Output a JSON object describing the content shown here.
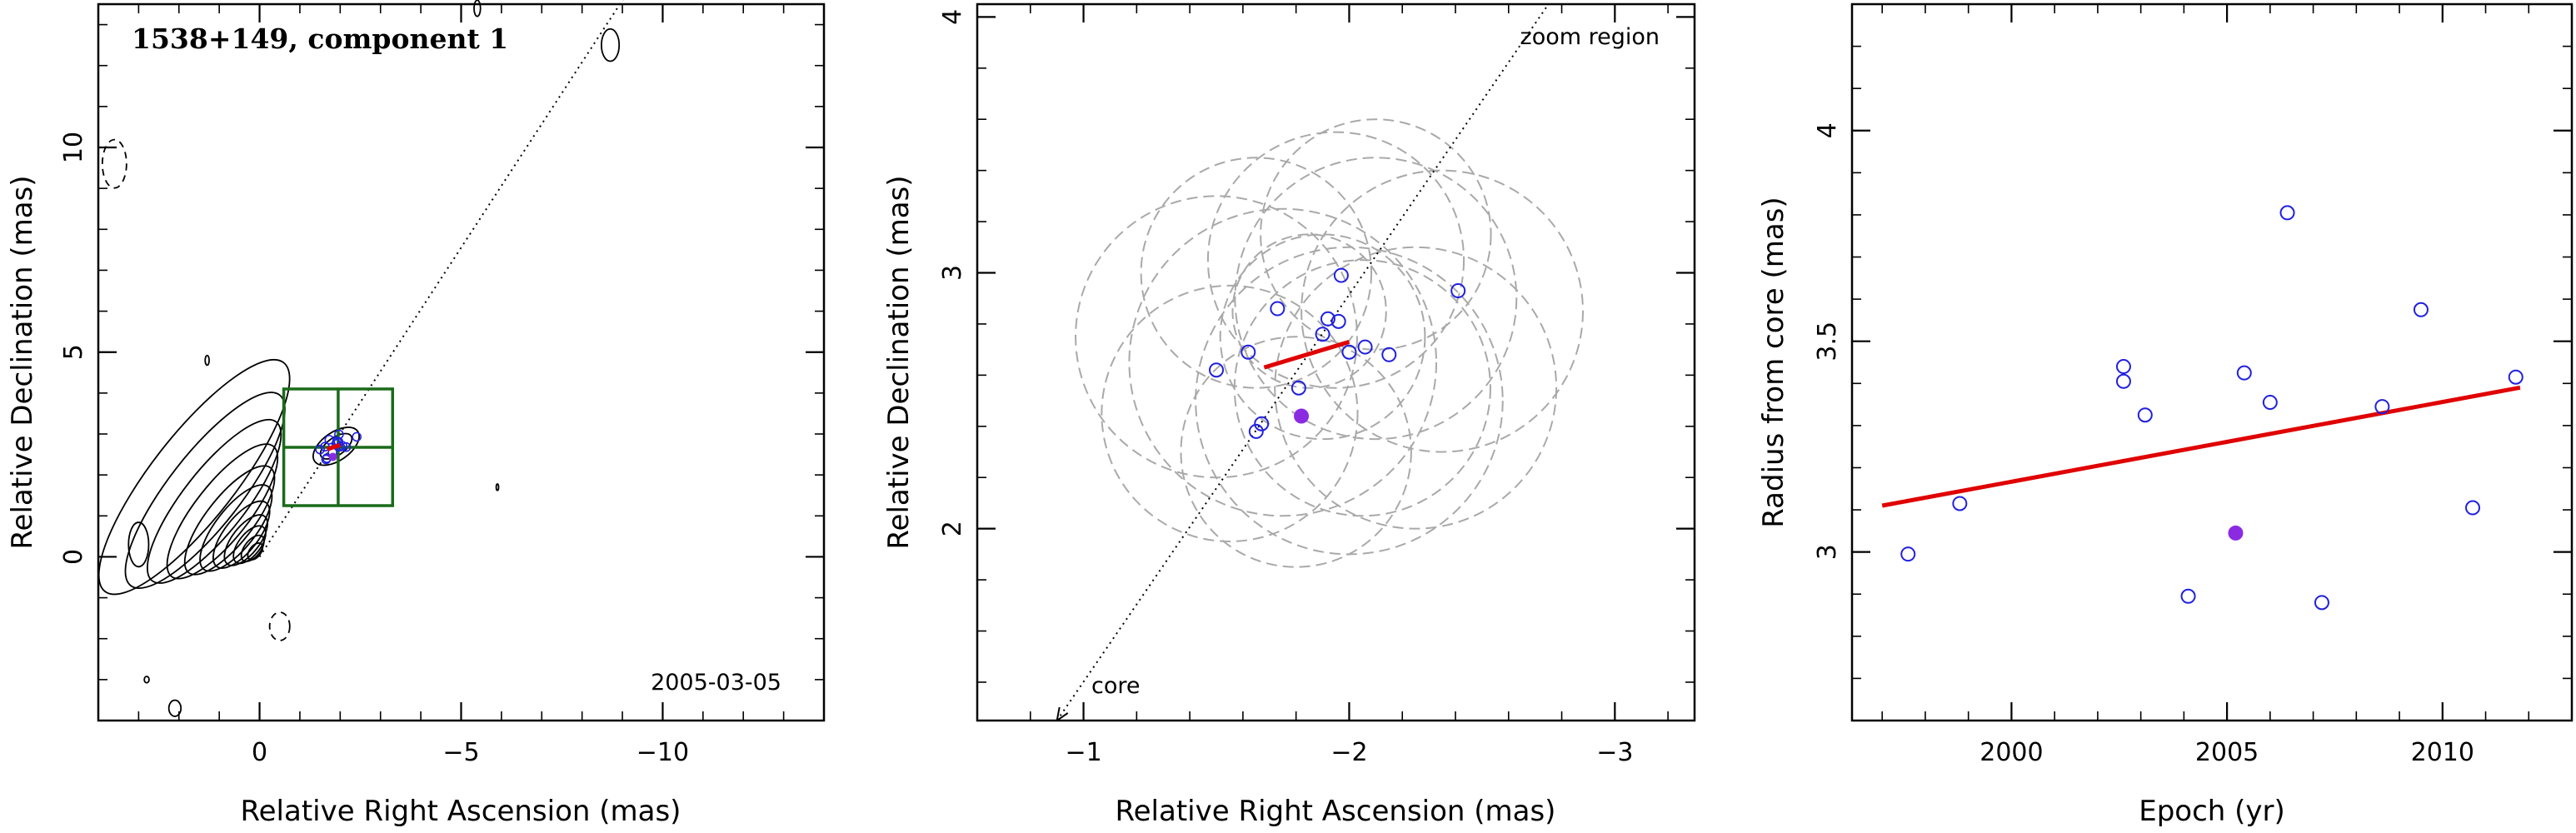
{
  "chart_data": [
    {
      "type": "contour",
      "title": "1538+149, component 1",
      "date_label": "2005-03-05",
      "xlabel": "Relative Right Ascension (mas)",
      "ylabel": "Relative Declination (mas)",
      "xlim": [
        4,
        -14
      ],
      "ylim": [
        -4,
        13.5
      ],
      "xticks": [
        0,
        -5,
        -10
      ],
      "yticks": [
        0,
        5,
        10
      ],
      "tick_labels_x": [
        "0",
        "−5",
        "−10"
      ],
      "tick_labels_y": [
        "0",
        "5",
        "10"
      ],
      "jet_line": {
        "from": [
          0,
          0
        ],
        "to": [
          -9.6,
          14.5
        ]
      },
      "zoom_box": {
        "x": [
          -0.6,
          -3.3
        ],
        "y": [
          1.25,
          4.1
        ]
      },
      "component_points": [
        [
          -1.5,
          2.62
        ],
        [
          -1.62,
          2.69
        ],
        [
          -1.73,
          2.86
        ],
        [
          -1.65,
          2.38
        ],
        [
          -1.67,
          2.41
        ],
        [
          -1.81,
          2.55
        ],
        [
          -1.9,
          2.76
        ],
        [
          -1.92,
          2.82
        ],
        [
          -1.96,
          2.81
        ],
        [
          -1.97,
          2.99
        ],
        [
          -2.0,
          2.69
        ],
        [
          -2.06,
          2.71
        ],
        [
          -2.15,
          2.68
        ],
        [
          -2.41,
          2.93
        ]
      ],
      "highlight_point": [
        -1.82,
        2.44
      ],
      "motion_vector": {
        "from": [
          -1.68,
          2.63
        ],
        "to": [
          -2.0,
          2.73
        ]
      },
      "colors": {
        "contour": "#000000",
        "box": "#1a6b1a",
        "points": "#2020e0",
        "highlight": "#8a2be2",
        "vector": "#e00000"
      }
    },
    {
      "type": "scatter",
      "xlabel": "Relative Right Ascension (mas)",
      "ylabel": "Relative Declination (mas)",
      "xlim": [
        -0.6,
        -3.3
      ],
      "ylim": [
        1.25,
        4.05
      ],
      "xticks": [
        -1,
        -2,
        -3
      ],
      "yticks": [
        2,
        3,
        4
      ],
      "tick_labels_x": [
        "−1",
        "−2",
        "−3"
      ],
      "tick_labels_y": [
        "2",
        "3",
        "4"
      ],
      "annotations": [
        "zoom region",
        "core"
      ],
      "points": [
        [
          -1.5,
          2.62
        ],
        [
          -1.62,
          2.69
        ],
        [
          -1.73,
          2.86
        ],
        [
          -1.65,
          2.38
        ],
        [
          -1.67,
          2.41
        ],
        [
          -1.81,
          2.55
        ],
        [
          -1.9,
          2.76
        ],
        [
          -1.92,
          2.82
        ],
        [
          -1.96,
          2.81
        ],
        [
          -1.97,
          2.99
        ],
        [
          -2.0,
          2.69
        ],
        [
          -2.06,
          2.71
        ],
        [
          -2.15,
          2.68
        ],
        [
          -2.41,
          2.93
        ]
      ],
      "highlight_point": [
        -1.82,
        2.44
      ],
      "motion_vector": {
        "from": [
          -1.68,
          2.63
        ],
        "to": [
          -2.0,
          2.73
        ]
      },
      "beam_circles": [
        {
          "c": [
            -2.1,
            2.9
          ],
          "r": 0.55
        },
        {
          "c": [
            -2.35,
            2.85
          ],
          "r": 0.55
        },
        {
          "c": [
            -1.5,
            2.75
          ],
          "r": 0.55
        },
        {
          "c": [
            -1.75,
            2.65
          ],
          "r": 0.6
        },
        {
          "c": [
            -1.95,
            3.05
          ],
          "r": 0.5
        },
        {
          "c": [
            -2.05,
            2.55
          ],
          "r": 0.5
        },
        {
          "c": [
            -1.8,
            2.3
          ],
          "r": 0.45
        },
        {
          "c": [
            -2.25,
            2.55
          ],
          "r": 0.55
        },
        {
          "c": [
            -1.65,
            3.0
          ],
          "r": 0.45
        },
        {
          "c": [
            -1.9,
            2.75
          ],
          "r": 0.4
        },
        {
          "c": [
            -2.0,
            2.5
          ],
          "r": 0.6
        },
        {
          "c": [
            -1.55,
            2.45
          ],
          "r": 0.5
        },
        {
          "c": [
            -2.1,
            3.15
          ],
          "r": 0.45
        },
        {
          "c": [
            -1.85,
            2.85
          ],
          "r": 0.3
        }
      ],
      "jet_line": {
        "from": [
          -0.9,
          1.25
        ],
        "to": [
          -2.75,
          4.05
        ]
      },
      "colors": {
        "points": "#2020e0",
        "highlight": "#8a2be2",
        "vector": "#e00000",
        "circles": "#a9a9a9"
      }
    },
    {
      "type": "scatter",
      "xlabel": "Epoch (yr)",
      "ylabel": "Radius from core (mas)",
      "xlim": [
        1996.3,
        2013.0
      ],
      "ylim": [
        2.6,
        4.3
      ],
      "xticks": [
        2000,
        2005,
        2010
      ],
      "yticks": [
        3,
        3.5,
        4
      ],
      "tick_labels_x": [
        "2000",
        "2005",
        "2010"
      ],
      "tick_labels_y": [
        "3",
        "3.5",
        "4"
      ],
      "points": [
        [
          1997.6,
          2.995
        ],
        [
          1998.8,
          3.115
        ],
        [
          2002.6,
          3.44
        ],
        [
          2002.6,
          3.405
        ],
        [
          2003.1,
          3.325
        ],
        [
          2004.1,
          2.895
        ],
        [
          2005.4,
          3.425
        ],
        [
          2006.0,
          3.355
        ],
        [
          2006.4,
          3.805
        ],
        [
          2007.2,
          2.88
        ],
        [
          2008.6,
          3.345
        ],
        [
          2009.5,
          3.575
        ],
        [
          2010.7,
          3.105
        ],
        [
          2011.7,
          3.415
        ]
      ],
      "highlight_point": [
        2005.2,
        3.045
      ],
      "fit_line": [
        [
          1997.0,
          3.11
        ],
        [
          2011.8,
          3.39
        ]
      ],
      "colors": {
        "points": "#2020e0",
        "highlight": "#8a2be2",
        "fit": "#e00000"
      }
    }
  ]
}
